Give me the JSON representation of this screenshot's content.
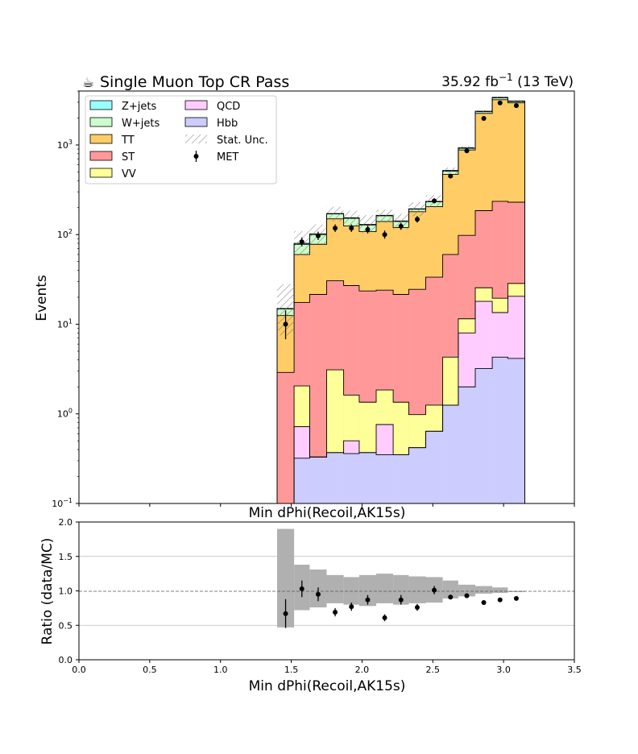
{
  "header": {
    "title_icon": "hot-beverage-icon",
    "title": "Single Muon Top CR Pass",
    "lumi_value": "35.92",
    "lumi_unit": "fb",
    "lumi_exp": "−1",
    "energy": "(13 TeV)"
  },
  "chart_data": [
    {
      "type": "stacked-step-histogram",
      "title": "Single Muon Top CR Pass",
      "ylabel": "Events",
      "xlabel": "Min dPhi(Recoil,AK15s)",
      "yscale": "log",
      "ylim": [
        0.1,
        4000
      ],
      "xlim": [
        0.0,
        3.5
      ],
      "bin_edges": [
        1.4,
        1.52,
        1.63,
        1.75,
        1.87,
        1.98,
        2.1,
        2.22,
        2.33,
        2.45,
        2.57,
        2.68,
        2.8,
        2.92,
        3.03,
        3.15
      ],
      "stack_order_bottom_to_top": [
        "Hbb",
        "QCD",
        "VV",
        "ST",
        "TT",
        "W+jets",
        "Z+jets"
      ],
      "cumulative_stack": {
        "Hbb": [
          0.1,
          0.32,
          0.33,
          0.37,
          0.36,
          0.37,
          0.35,
          0.35,
          0.42,
          0.64,
          1.25,
          2.0,
          3.2,
          4.3,
          4.15
        ],
        "QCD": [
          0.1,
          0.72,
          0.33,
          0.37,
          0.5,
          0.37,
          0.76,
          0.35,
          0.42,
          0.64,
          1.25,
          8.0,
          18.0,
          13.5,
          20.5
        ],
        "VV": [
          0.1,
          2.05,
          0.33,
          3.1,
          1.62,
          1.35,
          1.85,
          1.35,
          0.98,
          1.25,
          4.3,
          11.5,
          25.5,
          19.5,
          28.5
        ],
        "ST": [
          2.9,
          17.5,
          21.5,
          30.5,
          27.0,
          23.5,
          24.0,
          21.5,
          24.5,
          33.5,
          60.0,
          98.0,
          185.0,
          235.0,
          230.0
        ],
        "TT": [
          12.5,
          60.0,
          78.0,
          150.0,
          125.0,
          108.0,
          140.0,
          120.0,
          180.0,
          205.0,
          470.0,
          880.0,
          2250.0,
          3200.0,
          2950.0
        ],
        "W+jets": [
          14.8,
          78.0,
          100.0,
          170.0,
          152.0,
          128.0,
          162.0,
          140.0,
          192.0,
          232.0,
          510.0,
          920.0,
          2350.0,
          3350.0,
          3050.0
        ],
        "Z+jets": [
          15.0,
          80.0,
          102.0,
          172.0,
          154.0,
          130.0,
          164.0,
          142.0,
          194.0,
          235.0,
          520.0,
          930.0,
          2380.0,
          3400.0,
          3100.0
        ]
      },
      "stat_unc_band": {
        "up": [
          28.0,
          110.0,
          130.0,
          205.0,
          185.0,
          165.0,
          190.0,
          170.0,
          230.0,
          275.0,
          560.0,
          980.0,
          2450.0,
          3480.0,
          3160.0
        ],
        "down": [
          7.5,
          58.0,
          78.0,
          140.0,
          125.0,
          105.0,
          135.0,
          115.0,
          160.0,
          200.0,
          470.0,
          880.0,
          2300.0,
          3300.0,
          3040.0
        ]
      },
      "data_points": {
        "name": "MET",
        "x": [
          1.46,
          1.575,
          1.69,
          1.81,
          1.925,
          2.04,
          2.16,
          2.275,
          2.39,
          2.51,
          2.625,
          2.74,
          2.86,
          2.975,
          3.09
        ],
        "y": [
          10.0,
          83.0,
          97.0,
          118.0,
          118.0,
          114.0,
          100.0,
          124.0,
          148.0,
          238.0,
          450.0,
          860.0,
          1980.0,
          2950.0,
          2750.0
        ],
        "yerr_low": [
          3.2,
          9.0,
          10.0,
          11.0,
          11.0,
          11.0,
          10.0,
          11.0,
          12.0,
          15.0,
          21.0,
          29.0,
          44.0,
          54.0,
          52.0
        ],
        "yerr_high": [
          4.3,
          10.0,
          11.0,
          12.0,
          12.0,
          12.0,
          11.0,
          12.0,
          13.0,
          16.0,
          22.0,
          30.0,
          45.0,
          55.0,
          53.0
        ]
      },
      "y_ticks": [
        {
          "value": 0.1,
          "mantissa": "10",
          "exp": "−1"
        },
        {
          "value": 1,
          "mantissa": "10",
          "exp": "0"
        },
        {
          "value": 10,
          "mantissa": "10",
          "exp": "1"
        },
        {
          "value": 100,
          "mantissa": "10",
          "exp": "2"
        },
        {
          "value": 1000,
          "mantissa": "10",
          "exp": "3"
        }
      ],
      "legend": {
        "placement": "top-left",
        "columns": [
          [
            {
              "label": "Z+jets",
              "kind": "patch",
              "color": "#99ffff"
            },
            {
              "label": "W+jets",
              "kind": "patch",
              "color": "#ccffcc"
            },
            {
              "label": "TT",
              "kind": "patch",
              "color": "#ffcc66"
            },
            {
              "label": "ST",
              "kind": "patch",
              "color": "#ff9999"
            },
            {
              "label": "VV",
              "kind": "patch",
              "color": "#ffff99"
            }
          ],
          [
            {
              "label": "QCD",
              "kind": "patch",
              "color": "#ffccff"
            },
            {
              "label": "Hbb",
              "kind": "patch",
              "color": "#ccccff"
            },
            {
              "label": "Stat. Unc.",
              "kind": "hatch",
              "color": "#888888"
            },
            {
              "label": "MET",
              "kind": "errorbar",
              "color": "#000000"
            }
          ]
        ]
      },
      "colors": {
        "Z+jets": "#99ffff",
        "W+jets": "#ccffcc",
        "TT": "#ffcc66",
        "ST": "#ff9999",
        "VV": "#ffff99",
        "QCD": "#ffccff",
        "Hbb": "#ccccff"
      }
    },
    {
      "type": "ratio",
      "ylabel": "Ratio (data/MC)",
      "xlabel": "Min dPhi(Recoil,AK15s)",
      "xlim": [
        0.0,
        3.5
      ],
      "ylim": [
        0.0,
        2.0
      ],
      "x_ticks": [
        "0.0",
        "0.5",
        "1.0",
        "1.5",
        "2.0",
        "2.5",
        "3.0",
        "3.5"
      ],
      "y_ticks": [
        "0.0",
        "0.5",
        "1.0",
        "1.5",
        "2.0"
      ],
      "reference_line": 1.0,
      "grid": "horizontal",
      "band_color": "#b0b0b0",
      "bin_edges": [
        1.4,
        1.52,
        1.63,
        1.75,
        1.87,
        1.98,
        2.1,
        2.22,
        2.33,
        2.45,
        2.57,
        2.68,
        2.8,
        2.92,
        3.03,
        3.15
      ],
      "band_low": [
        0.47,
        0.72,
        0.76,
        0.82,
        0.8,
        0.78,
        0.82,
        0.8,
        0.82,
        0.83,
        0.89,
        0.92,
        0.96,
        0.97,
        1.0
      ],
      "band_high": [
        1.9,
        1.38,
        1.31,
        1.23,
        1.2,
        1.23,
        1.25,
        1.23,
        1.21,
        1.2,
        1.15,
        1.09,
        1.07,
        1.05,
        1.0
      ],
      "points": {
        "x": [
          1.46,
          1.575,
          1.69,
          1.81,
          1.925,
          2.04,
          2.16,
          2.275,
          2.39,
          2.51,
          2.625,
          2.74,
          2.86,
          2.975,
          3.09
        ],
        "y": [
          0.67,
          1.03,
          0.95,
          0.69,
          0.77,
          0.87,
          0.61,
          0.87,
          0.76,
          1.01,
          0.91,
          0.93,
          0.83,
          0.87,
          0.89
        ],
        "err": [
          0.21,
          0.12,
          0.1,
          0.06,
          0.06,
          0.07,
          0.05,
          0.07,
          0.05,
          0.06,
          0.03,
          0.03,
          0.02,
          0.02,
          0.02
        ]
      }
    }
  ]
}
